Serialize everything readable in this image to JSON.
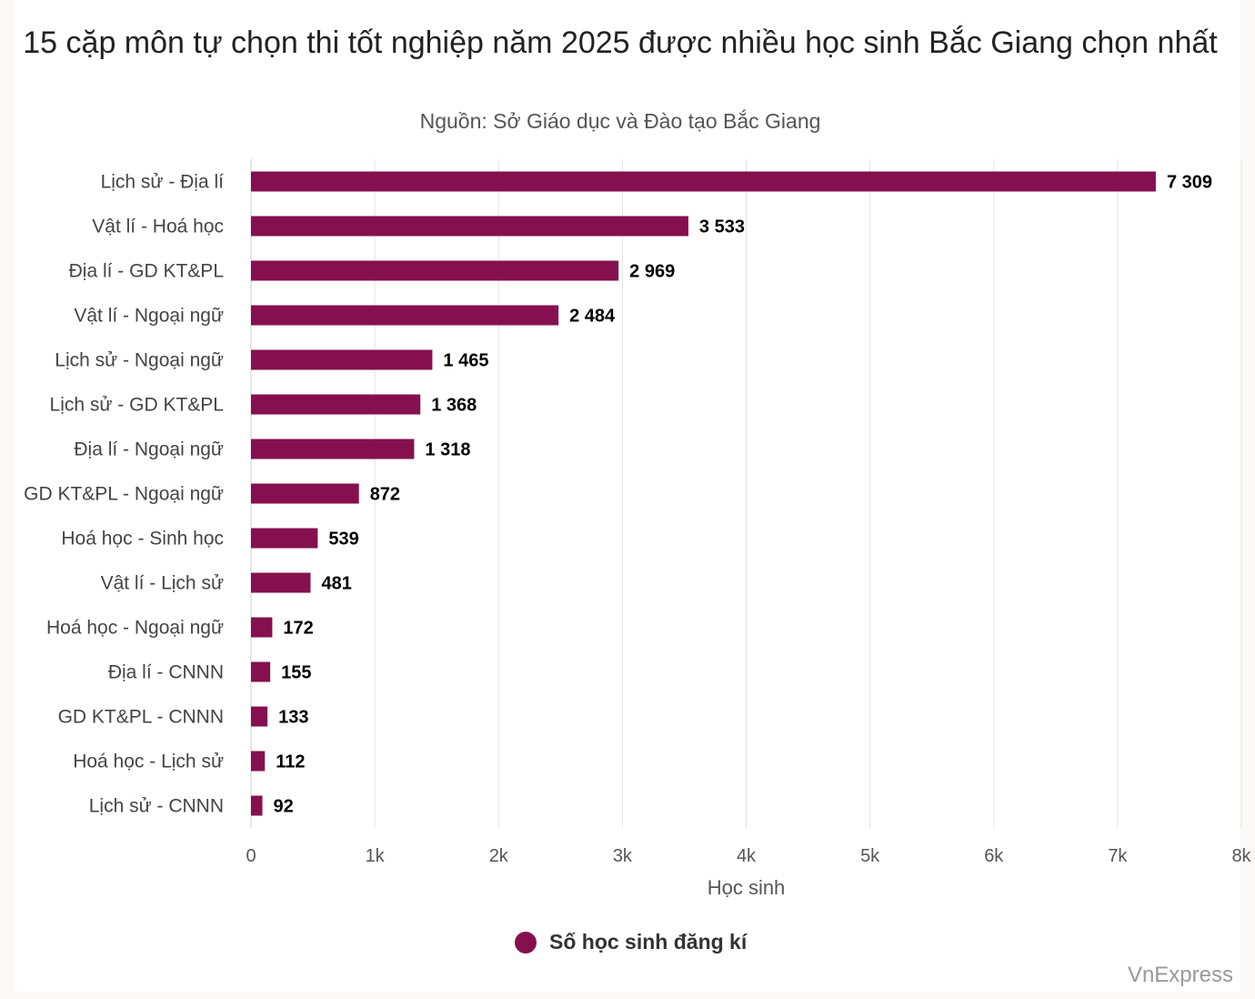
{
  "chart_data": {
    "type": "bar",
    "orientation": "horizontal",
    "title": "15 cặp môn tự chọn thi tốt nghiệp năm 2025 được nhiều học sinh Bắc Giang chọn nhất",
    "subtitle": "Nguồn: Sở Giáo dục và Đào tạo Bắc Giang",
    "categories": [
      "Lịch sử - Địa lí",
      "Vật lí - Hoá học",
      "Địa lí - GD KT&PL",
      "Vật lí - Ngoại ngữ",
      "Lịch sử - Ngoại ngữ",
      "Lịch sử - GD KT&PL",
      "Địa lí - Ngoại ngữ",
      "GD KT&PL - Ngoại ngữ",
      "Hoá học - Sinh học",
      "Vật lí - Lịch sử",
      "Hoá học - Ngoại ngữ",
      "Địa lí - CNNN",
      "GD KT&PL - CNNN",
      "Hoá học - Lịch sử",
      "Lịch sử - CNNN"
    ],
    "series": [
      {
        "name": "Số học sinh đăng kí",
        "color": "#86104f",
        "values": [
          7309,
          3533,
          2969,
          2484,
          1465,
          1368,
          1318,
          872,
          539,
          481,
          172,
          155,
          133,
          112,
          92
        ],
        "data_labels": [
          "7 309",
          "3 533",
          "2 969",
          "2 484",
          "1 465",
          "1 368",
          "1 318",
          "872",
          "539",
          "481",
          "172",
          "155",
          "133",
          "112",
          "92"
        ]
      }
    ],
    "xlabel": "Học sinh",
    "xlim": [
      0,
      8000
    ],
    "ticks": [
      0,
      1000,
      2000,
      3000,
      4000,
      5000,
      6000,
      7000,
      8000
    ],
    "tick_labels": [
      "0",
      "1k",
      "2k",
      "3k",
      "4k",
      "5k",
      "6k",
      "7k",
      "8k"
    ],
    "grid": true,
    "legend_position": "bottom-center"
  },
  "credit": "VnExpress"
}
